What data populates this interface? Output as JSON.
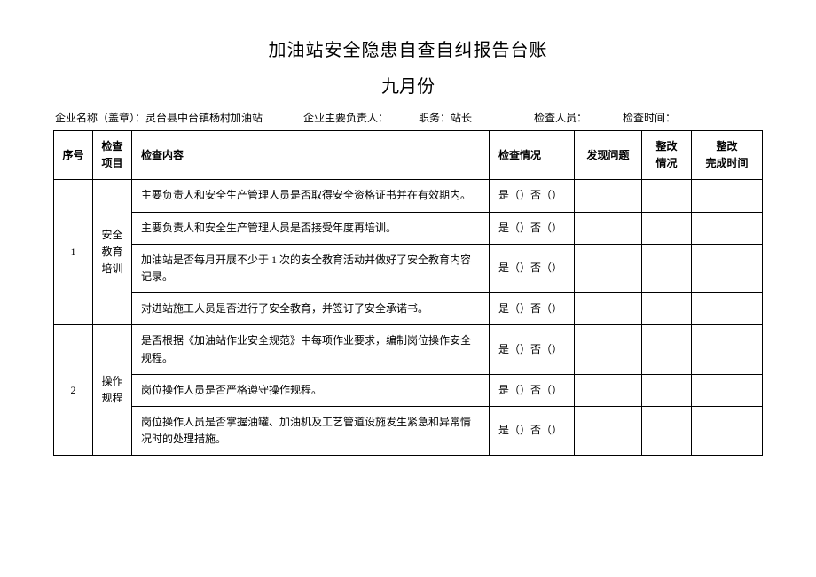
{
  "title": "加油站安全隐患自查自纠报告台账",
  "subtitle": "九月份",
  "meta": {
    "company_label": "企业名称（盖章）：",
    "company_value": "灵台县中台镇杨村加油站",
    "leader_label": "企业主要负责人：",
    "leader_value": "",
    "position_label": "职务：",
    "position_value": "站长",
    "inspector_label": "检查人员：",
    "inspector_value": "",
    "time_label": "检查时间：",
    "time_value": ""
  },
  "headers": {
    "seq": "序号",
    "category": "检查\n项目",
    "content": "检查内容",
    "status": "检查情况",
    "problem": "发现问题",
    "correction": "整改\n情况",
    "complete_time": "整改\n完成时间"
  },
  "status_option": "是（）否（）",
  "groups": [
    {
      "seq": "1",
      "category": "安全\n教育\n培训",
      "items": [
        "主要负责人和安全生产管理人员是否取得安全资格证书并在有效期内。",
        "主要负责人和安全生产管理人员是否接受年度再培训。",
        "加油站是否每月开展不少于 1 次的安全教育活动并做好了安全教育内容记录。",
        "对进站施工人员是否进行了安全教育，并签订了安全承诺书。"
      ]
    },
    {
      "seq": "2",
      "category": "操作\n规程",
      "items": [
        "是否根据《加油站作业安全规范》中每项作业要求，编制岗位操作安全规程。",
        "岗位操作人员是否严格遵守操作规程。",
        "岗位操作人员是否掌握油罐、加油机及工艺管道设施发生紧急和异常情况时的处理措施。"
      ]
    }
  ]
}
